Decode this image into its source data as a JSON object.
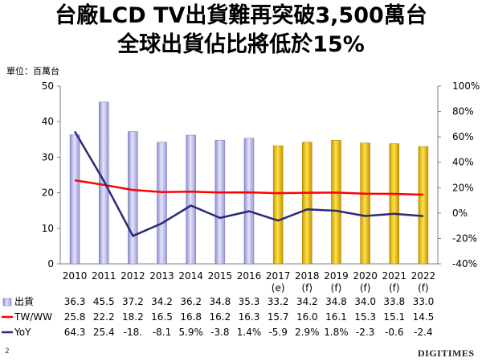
{
  "title_line1": "台廠LCD TV出貨難再突破3,500萬台",
  "title_line2": "全球出貨佔比將低於15%",
  "unit_label": "單位：百萬台",
  "page_number": "2",
  "brand": "DIGITIMES",
  "colors": {
    "bar_actual": "#b8b8e8",
    "bar_forecast": "#e8c000",
    "line_tw": "#ff0000",
    "line_yoy": "#2a2a7a"
  },
  "chart_data": {
    "type": "bar",
    "categories": [
      "2010",
      "2011",
      "2012",
      "2013",
      "2014",
      "2015",
      "2016",
      "2017",
      "2018",
      "2019",
      "2020",
      "2021",
      "2022"
    ],
    "category_sublabels": [
      "",
      "",
      "",
      "",
      "",
      "",
      "",
      "(e)",
      "(f)",
      "(f)",
      "(f)",
      "(f)",
      "(f)"
    ],
    "y_left_ticks": [
      "0",
      "10",
      "20",
      "30",
      "40",
      "50"
    ],
    "y_left_lim": [
      0,
      50
    ],
    "y_right_ticks": [
      "-40%",
      "-20%",
      "0%",
      "20%",
      "40%",
      "60%",
      "80%",
      "100%"
    ],
    "y_right_lim": [
      -40,
      100
    ],
    "series": [
      {
        "name": "出貨",
        "type": "bar",
        "axis": "left",
        "values": [
          36.3,
          45.5,
          37.2,
          34.2,
          36.2,
          34.8,
          35.3,
          33.2,
          34.2,
          34.8,
          34.0,
          33.8,
          33.0
        ],
        "table_values": [
          "36.3",
          "45.5",
          "37.2",
          "34.2",
          "36.2",
          "34.8",
          "35.3",
          "33.2",
          "34.2",
          "34.8",
          "34.0",
          "33.8",
          "33.0"
        ]
      },
      {
        "name": "TW/WW",
        "type": "line",
        "axis": "right",
        "values": [
          25.8,
          22.2,
          18.2,
          16.5,
          16.8,
          16.2,
          16.3,
          15.7,
          16.0,
          16.1,
          15.3,
          15.1,
          14.5
        ],
        "table_values": [
          "25.8",
          "22.2",
          "18.2",
          "16.5",
          "16.8",
          "16.2",
          "16.3",
          "15.7",
          "16.0",
          "16.1",
          "15.3",
          "15.1",
          "14.5"
        ]
      },
      {
        "name": "YoY",
        "type": "line",
        "axis": "right",
        "values": [
          64.3,
          25.4,
          -18.0,
          -8.1,
          5.9,
          -3.8,
          1.4,
          -5.9,
          2.9,
          1.8,
          -2.3,
          -0.6,
          -2.4
        ],
        "table_values": [
          "64.3",
          "25.4",
          "-18.",
          "-8.1",
          "5.9%",
          "-3.8",
          "1.4%",
          "-5.9",
          "2.9%",
          "1.8%",
          "-2.3",
          "-0.6",
          "-2.4"
        ]
      }
    ],
    "forecast_from_index": 7,
    "grid": false,
    "legend": "table-left"
  }
}
